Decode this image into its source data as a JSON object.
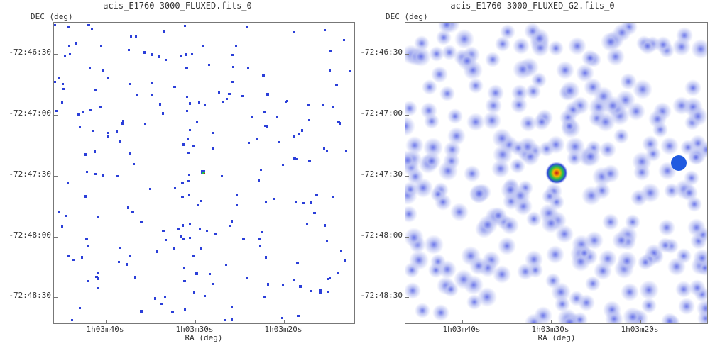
{
  "panels": [
    {
      "title": "acis_E1760-3000_FLUXED.fits_0",
      "ylabel": "DEC (deg)",
      "xlabel": "RA (deg)",
      "yticks": [
        "-72:46:30",
        "-72:47:00",
        "-72:47:30",
        "-72:48:00",
        "-72:48:30"
      ],
      "xticks": [
        "1h03m40s",
        "1h03m30s",
        "1h03m20s"
      ],
      "style": "raw"
    },
    {
      "title": "acis_E1760-3000_FLUXED_G2.fits_0",
      "ylabel": "DEC (deg)",
      "xlabel": "RA (deg)",
      "yticks": [
        "-72:46:30",
        "-72:47:00",
        "-72:47:30",
        "-72:48:00",
        "-72:48:30"
      ],
      "xticks": [
        "1h03m40s",
        "1h03m30s",
        "1h03m20s"
      ],
      "style": "smoothed"
    }
  ],
  "colors": {
    "photon": "#2b3fd9",
    "smooth_halo": "#b8bff2",
    "smooth_core": "#5360e6",
    "hot_center": "#c0151b",
    "hot_ring1": "#f5b500",
    "hot_ring2": "#22c04a",
    "hot_ring3": "#2e46dd"
  }
}
